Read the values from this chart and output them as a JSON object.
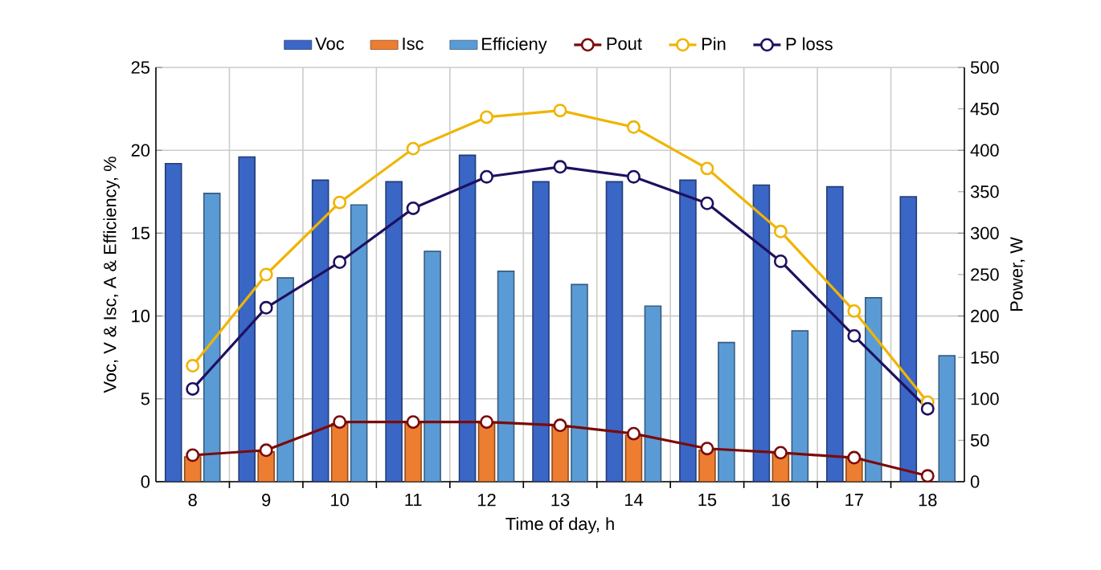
{
  "chart_data": {
    "type": "bar",
    "categories": [
      "8",
      "9",
      "10",
      "11",
      "12",
      "13",
      "14",
      "15",
      "16",
      "17",
      "18"
    ],
    "xlabel": "Time of day, h",
    "ylabel": "Voc, V & Isc, A & Efficiency, %",
    "y2label": "Power, W",
    "ylim": [
      0,
      25
    ],
    "yticks": [
      0,
      5,
      10,
      15,
      20,
      25
    ],
    "y2lim": [
      0,
      500
    ],
    "y2ticks": [
      0,
      50,
      100,
      150,
      200,
      250,
      300,
      350,
      400,
      450,
      500
    ],
    "grid": true,
    "legend": "top",
    "marker": "circle",
    "series": [
      {
        "name": "Voc",
        "color": "#3a66c6",
        "values": [
          19.2,
          19.6,
          18.2,
          18.1,
          19.7,
          18.1,
          18.1,
          18.2,
          17.9,
          17.8,
          17.2
        ]
      },
      {
        "name": "Isc",
        "color": "#ed7d31",
        "values": [
          1.5,
          1.8,
          3.5,
          3.5,
          3.5,
          3.3,
          2.8,
          1.9,
          1.7,
          1.4,
          null
        ]
      },
      {
        "name": "Efficieny",
        "color": "#5b9bd5",
        "values": [
          17.4,
          12.3,
          16.7,
          13.9,
          12.7,
          11.9,
          10.6,
          8.4,
          9.1,
          11.1,
          7.6
        ]
      },
      {
        "name": "Pout",
        "type": "line",
        "axis": "y2",
        "color": "#7b0a0a",
        "values": [
          32,
          38,
          72,
          72,
          72,
          68,
          58,
          40,
          35,
          29,
          7
        ]
      },
      {
        "name": "Pin",
        "type": "line",
        "axis": "y2",
        "color": "#f0b400",
        "values": [
          140,
          250,
          337,
          402,
          440,
          448,
          428,
          378,
          302,
          206,
          96
        ]
      },
      {
        "name": "P loss",
        "type": "line",
        "axis": "y2",
        "color": "#1f1060",
        "values": [
          112,
          210,
          265,
          330,
          368,
          380,
          368,
          336,
          266,
          176,
          88
        ]
      }
    ]
  }
}
